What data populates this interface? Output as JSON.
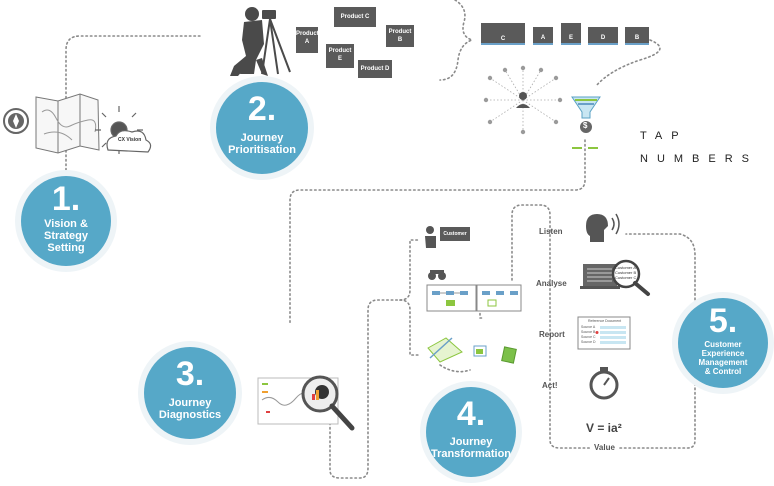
{
  "brand": {
    "line1": "TAP",
    "line2": "NUMBERS"
  },
  "phases": [
    {
      "num": "1.",
      "title_line1": "Vision &",
      "title_line2": "Strategy",
      "title_line3": "Setting"
    },
    {
      "num": "2.",
      "title_line1": "Journey",
      "title_line2": "Prioritisation"
    },
    {
      "num": "3.",
      "title_line1": "Journey",
      "title_line2": "Diagnostics"
    },
    {
      "num": "4.",
      "title_line1": "Journey",
      "title_line2": "Transformation"
    },
    {
      "num": "5.",
      "title_line1": "Customer",
      "title_line2": "Experience",
      "title_line3": "Management",
      "title_line4": "& Control"
    }
  ],
  "vision_cloud": "CX Vision",
  "products": {
    "a": {
      "line1": "Product",
      "line2": "A"
    },
    "b": {
      "line1": "Product",
      "line2": "B"
    },
    "c": "Product C",
    "d": "Product D",
    "e": {
      "line1": "Product",
      "line2": "E"
    }
  },
  "sequence": [
    "C",
    "A",
    "E",
    "D",
    "B"
  ],
  "funnel_symbol": "$",
  "transformation_steps": [
    "Listen",
    "Analyse",
    "Report",
    "Act!"
  ],
  "formula": "V = ia²",
  "value_label": "Value",
  "customer_card": "Customer",
  "search_customers": [
    "Customer A",
    "Customer B",
    "Customer C"
  ],
  "report": {
    "title": "Reference Document",
    "rows": [
      "Source A",
      "Source B",
      "Source C",
      "Source D"
    ]
  },
  "colors": {
    "accent": "#56a8c8",
    "dark": "#5a5a5a",
    "green": "#8cc63f",
    "dots": "#8a8a8a"
  }
}
